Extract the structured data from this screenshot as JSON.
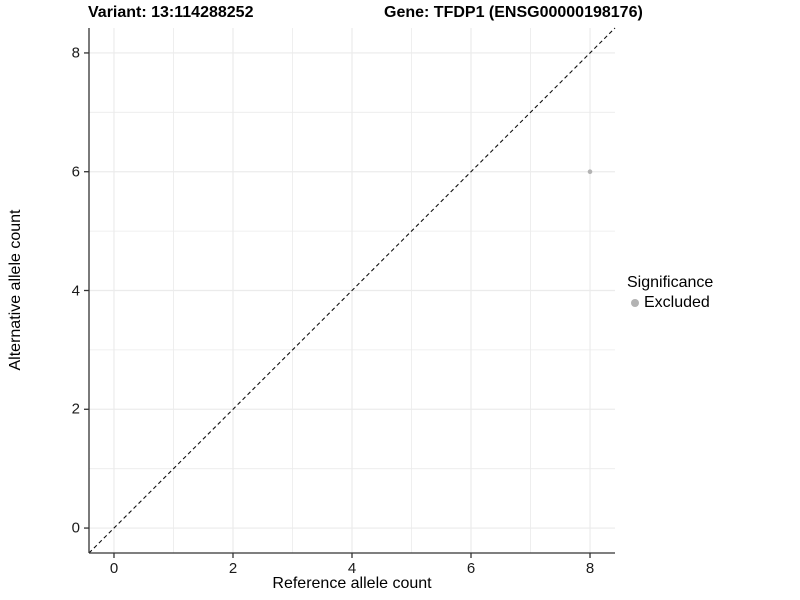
{
  "titles": {
    "variant": "Variant: 13:114288252",
    "gene": "Gene: TFDP1 (ENSG00000198176)"
  },
  "axes": {
    "x_label": "Reference allele count",
    "y_label": "Alternative allele count"
  },
  "legend": {
    "title": "Significance",
    "items": [
      {
        "label": "Excluded",
        "color": "#b3b3b3"
      }
    ]
  },
  "colors": {
    "background": "#ffffff",
    "grid": "#ebebeb",
    "axis_line": "#333333",
    "tick_mark": "#333333",
    "tick_label": "#1a1a1a",
    "reference_line": "#111111",
    "point": "#b3b3b3"
  },
  "chart_data": {
    "type": "scatter",
    "title": "Variant: 13:114288252    Gene: TFDP1 (ENSG00000198176)",
    "xlabel": "Reference allele count",
    "ylabel": "Alternative allele count",
    "xlim": [
      -0.42,
      8.42
    ],
    "ylim": [
      -0.42,
      8.42
    ],
    "x_ticks": [
      0,
      2,
      4,
      6,
      8
    ],
    "y_ticks": [
      0,
      2,
      4,
      6,
      8
    ],
    "grid": true,
    "grid_step": 1,
    "legend_position": "right",
    "series": [
      {
        "name": "Excluded",
        "color": "#b3b3b3",
        "points": [
          {
            "x": 8,
            "y": 6
          }
        ]
      }
    ],
    "reference_line": {
      "type": "identity",
      "slope": 1,
      "intercept": 0,
      "style": "dashed",
      "color": "#111111"
    }
  }
}
